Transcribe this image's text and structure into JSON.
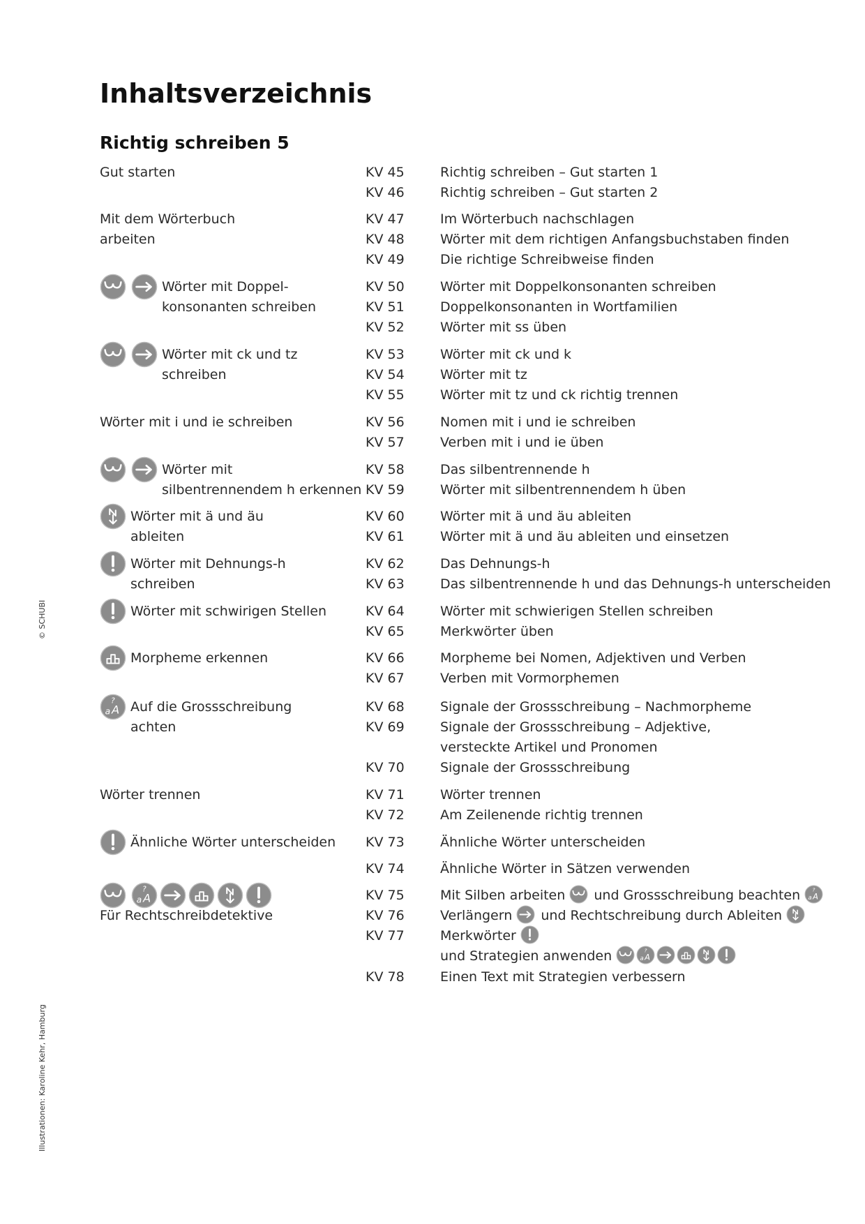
{
  "title": "Inhaltsverzeichnis",
  "subtitle": "Richtig schreiben 5",
  "side": {
    "copyright": "© SCHUBI",
    "illustrations": "Illustrationen: Karoline Kehr, Hamburg"
  },
  "colors": {
    "icon_fill": "#8c8c8c",
    "text": "#2a2a2a"
  },
  "sections": [
    {
      "left_icons": [],
      "left": [
        "Gut starten"
      ],
      "entries": [
        {
          "kv": "KV 45",
          "parts": [
            {
              "t": "Richtig schreiben – Gut starten 1"
            }
          ]
        },
        {
          "kv": "KV 46",
          "parts": [
            {
              "t": "Richtig schreiben – Gut starten 2"
            }
          ]
        }
      ]
    },
    {
      "left_icons": [],
      "left": [
        "Mit dem Wörterbuch",
        "arbeiten"
      ],
      "entries": [
        {
          "kv": "KV 47",
          "parts": [
            {
              "t": "Im Wörterbuch nachschlagen"
            }
          ]
        },
        {
          "kv": "KV 48",
          "parts": [
            {
              "t": "Wörter mit dem richtigen Anfangsbuchstaben finden"
            }
          ]
        },
        {
          "kv": "KV 49",
          "parts": [
            {
              "t": "Die richtige Schreibweise finden"
            }
          ]
        }
      ]
    },
    {
      "left_icons": [
        "syllable-icon",
        "arrow-icon"
      ],
      "left": [
        "Wörter mit Doppel-",
        "konsonanten schreiben"
      ],
      "entries": [
        {
          "kv": "KV 50",
          "parts": [
            {
              "t": "Wörter mit Doppelkonsonanten schreiben"
            }
          ]
        },
        {
          "kv": "KV 51",
          "parts": [
            {
              "t": "Doppelkonsonanten in Wortfamilien"
            }
          ]
        },
        {
          "kv": "KV 52",
          "parts": [
            {
              "t": "Wörter mit ss üben"
            }
          ]
        }
      ]
    },
    {
      "left_icons": [
        "syllable-icon",
        "arrow-icon"
      ],
      "left": [
        "Wörter mit ck und tz",
        "schreiben"
      ],
      "entries": [
        {
          "kv": "KV 53",
          "parts": [
            {
              "t": "Wörter mit ck und k"
            }
          ]
        },
        {
          "kv": "KV 54",
          "parts": [
            {
              "t": "Wörter mit tz"
            }
          ]
        },
        {
          "kv": "KV 55",
          "parts": [
            {
              "t": "Wörter mit tz und ck richtig trennen"
            }
          ]
        }
      ]
    },
    {
      "left_icons": [],
      "left": [
        "Wörter mit i und ie schreiben"
      ],
      "entries": [
        {
          "kv": "KV 56",
          "parts": [
            {
              "t": "Nomen mit i und ie schreiben"
            }
          ]
        },
        {
          "kv": "KV 57",
          "parts": [
            {
              "t": "Verben mit i und ie üben"
            }
          ]
        }
      ]
    },
    {
      "left_icons": [
        "syllable-icon",
        "arrow-icon"
      ],
      "left": [
        "Wörter mit",
        "silbentrennendem h erkennen"
      ],
      "entries": [
        {
          "kv": "KV 58",
          "parts": [
            {
              "t": "Das silbentrennende h"
            }
          ]
        },
        {
          "kv": "KV 59",
          "parts": [
            {
              "t": "Wörter mit silbentrennendem h üben"
            }
          ]
        }
      ]
    },
    {
      "left_icons": [
        "derive-icon"
      ],
      "left": [
        "Wörter mit ä und äu",
        "ableiten"
      ],
      "entries": [
        {
          "kv": "KV 60",
          "parts": [
            {
              "t": "Wörter mit ä und äu ableiten"
            }
          ]
        },
        {
          "kv": "KV 61",
          "parts": [
            {
              "t": "Wörter mit ä und äu ableiten und einsetzen"
            }
          ]
        }
      ]
    },
    {
      "left_icons": [
        "exclamation-icon"
      ],
      "left": [
        "Wörter mit Dehnungs-h",
        "schreiben"
      ],
      "entries": [
        {
          "kv": "KV 62",
          "parts": [
            {
              "t": "Das Dehnungs-h"
            }
          ]
        },
        {
          "kv": "KV 63",
          "parts": [
            {
              "t": "Das silbentrennende h und das Dehnungs-h unterscheiden"
            }
          ]
        }
      ]
    },
    {
      "left_icons": [
        "exclamation-icon"
      ],
      "left": [
        "Wörter mit schwirigen Stellen"
      ],
      "entries": [
        {
          "kv": "KV 64",
          "parts": [
            {
              "t": "Wörter mit schwierigen Stellen schreiben"
            }
          ]
        },
        {
          "kv": "KV 65",
          "parts": [
            {
              "t": "Merkwörter üben"
            }
          ]
        }
      ]
    },
    {
      "left_icons": [
        "morpheme-icon"
      ],
      "left": [
        "Morpheme erkennen"
      ],
      "entries": [
        {
          "kv": "KV 66",
          "parts": [
            {
              "t": "Morpheme bei Nomen, Adjektiven und Verben"
            }
          ]
        },
        {
          "kv": "KV 67",
          "parts": [
            {
              "t": "Verben mit Vormorphemen"
            }
          ]
        }
      ]
    },
    {
      "left_icons": [
        "capital-icon"
      ],
      "left": [
        "Auf die Grossschreibung",
        "achten"
      ],
      "entries": [
        {
          "kv": "KV 68",
          "parts": [
            {
              "t": "Signale der Grossschreibung – Nachmorpheme"
            }
          ]
        },
        {
          "kv": "KV 69",
          "parts": [
            {
              "t": "Signale der Grossschreibung – Adjektive,"
            }
          ]
        },
        {
          "kv": "",
          "parts": [
            {
              "t": "versteckte Artikel und Pronomen"
            }
          ]
        },
        {
          "kv": "KV 70",
          "parts": [
            {
              "t": "Signale der Grossschreibung"
            }
          ]
        }
      ]
    },
    {
      "left_icons": [],
      "left": [
        "Wörter trennen"
      ],
      "entries": [
        {
          "kv": "KV 71",
          "parts": [
            {
              "t": "Wörter trennen"
            }
          ]
        },
        {
          "kv": "KV 72",
          "parts": [
            {
              "t": "Am Zeilenende richtig trennen"
            }
          ]
        }
      ]
    },
    {
      "left_icons": [
        "exclamation-icon"
      ],
      "left": [
        "Ähnliche Wörter unterscheiden"
      ],
      "entries": [
        {
          "kv": "KV 73",
          "parts": [
            {
              "t": "Ähnliche Wörter unterscheiden"
            }
          ]
        }
      ]
    },
    {
      "left_icons": [],
      "left": [],
      "entries": [
        {
          "kv": "KV 74",
          "parts": [
            {
              "t": "Ähnliche Wörter in Sätzen verwenden"
            }
          ]
        }
      ]
    },
    {
      "left_icons_row": [
        "syllable-icon",
        "capital-icon",
        "arrow-icon",
        "morpheme-icon",
        "derive-icon",
        "exclamation-icon"
      ],
      "left_icons": [],
      "left": [
        "Für Rechtschreibdetektive"
      ],
      "entries": [
        {
          "kv": "KV 75",
          "parts": [
            {
              "t": "Mit Silben arbeiten"
            },
            {
              "i": "syllable-icon"
            },
            {
              "t": "und Grossschreibung beachten"
            },
            {
              "i": "capital-icon"
            }
          ]
        },
        {
          "kv": "KV 76",
          "parts": [
            {
              "t": "Verlängern"
            },
            {
              "i": "arrow-icon"
            },
            {
              "t": "und Rechtschreibung durch Ableiten"
            },
            {
              "i": "derive-icon"
            }
          ]
        },
        {
          "kv": "KV 77",
          "parts": [
            {
              "t": "Merkwörter"
            },
            {
              "i": "exclamation-icon"
            }
          ]
        },
        {
          "kv": "",
          "parts": [
            {
              "t": "und Strategien anwenden"
            },
            {
              "i": "syllable-icon"
            },
            {
              "i": "capital-icon"
            },
            {
              "i": "arrow-icon"
            },
            {
              "i": "morpheme-icon"
            },
            {
              "i": "derive-icon"
            },
            {
              "i": "exclamation-icon"
            }
          ]
        },
        {
          "kv": "KV 78",
          "parts": [
            {
              "t": "Einen Text mit Strategien verbessern"
            }
          ]
        }
      ]
    }
  ]
}
